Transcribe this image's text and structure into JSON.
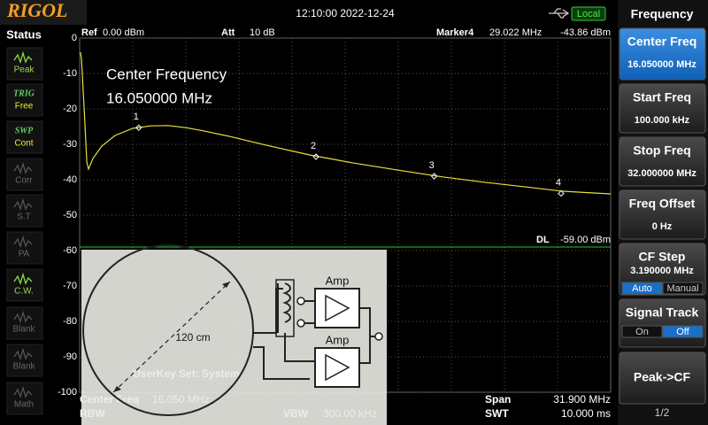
{
  "header": {
    "logo": "RIGOL",
    "datetime": "12:10:00 2022-12-24",
    "mode": "Local"
  },
  "status": {
    "title": "Status",
    "items": [
      {
        "label": "Peak"
      },
      {
        "tag": "TRIG",
        "label": "Free"
      },
      {
        "tag": "SWP",
        "label": "Cont"
      },
      {
        "label": "Corr"
      },
      {
        "label": "S.T"
      },
      {
        "label": "PA"
      },
      {
        "label": "C.W."
      },
      {
        "label": "Blank"
      },
      {
        "label": "Blank"
      },
      {
        "label": "Math"
      }
    ]
  },
  "plot": {
    "ref_label": "Ref",
    "ref": "0.00 dBm",
    "att_label": "Att",
    "att": "10 dB",
    "marker_label": "Marker4",
    "marker_freq": "29.022 MHz",
    "marker_level": "-43.86 dBm",
    "annotation": [
      "Center Frequency",
      "16.050000 MHz"
    ],
    "xlim": [
      0.1,
      32
    ],
    "ylim": [
      -100,
      0
    ],
    "yticks": [
      0,
      -10,
      -20,
      -30,
      -40,
      -50,
      -60,
      -70,
      -80,
      -90,
      -100
    ],
    "trace": {
      "x": [
        0.15,
        0.21,
        0.37,
        0.53,
        0.63,
        0.9,
        1.43,
        2.23,
        3.29,
        4.35,
        5.42,
        6.48,
        7.54,
        9.14,
        11.27,
        13.92,
        16.58,
        19.24,
        21.9,
        24.56,
        27.22,
        29.02,
        30.4,
        32
      ],
      "y": [
        -4,
        -6,
        -20,
        -35,
        -37,
        -34,
        -30.5,
        -27.5,
        -25.5,
        -24.8,
        -24.7,
        -25.3,
        -26.2,
        -27.8,
        -30.2,
        -33,
        -35.3,
        -37.3,
        -39.2,
        -40.8,
        -42.2,
        -43.2,
        -43.6,
        -44
      ]
    },
    "markers": [
      {
        "label": "1",
        "x": 3.65,
        "y": -25.3
      },
      {
        "label": "2",
        "x": 14.3,
        "y": -33.5
      },
      {
        "label": "3",
        "x": 21.4,
        "y": -39
      },
      {
        "label": "4",
        "x": 29.022,
        "y": -43.86
      }
    ],
    "display_line": {
      "label": "DL",
      "value": -59,
      "value_label": "-59.00 dBm"
    }
  },
  "footer": {
    "center_label": "Center Freq",
    "center": "16.050 MHz",
    "rbw_label": "RBW",
    "vbw_label": "VBW",
    "vbw": "300.00 kHz",
    "span_label": "Span",
    "span": "31.900 MHz",
    "swt_label": "SWT",
    "swt": "10.000 ms"
  },
  "overlay": {
    "ghost_text": "UserKey Set:   System",
    "diameter": "120 cm",
    "amp_labels": [
      "Amp",
      "Amp"
    ]
  },
  "menu": {
    "title": "Frequency",
    "keys": [
      {
        "label": "Center Freq",
        "value": "16.050000 MHz",
        "active": true
      },
      {
        "label": "Start Freq",
        "value": "100.000 kHz"
      },
      {
        "label": "Stop Freq",
        "value": "32.000000 MHz"
      },
      {
        "label": "Freq Offset",
        "value": "0 Hz"
      },
      {
        "label": "CF Step",
        "value": "3.190000 MHz",
        "options": [
          "Auto",
          "Manual"
        ],
        "selected": 0
      },
      {
        "label": "Signal Track",
        "options": [
          "On",
          "Off"
        ],
        "selected": 1
      },
      {
        "label": "Peak->CF"
      }
    ],
    "page": "1/2"
  }
}
